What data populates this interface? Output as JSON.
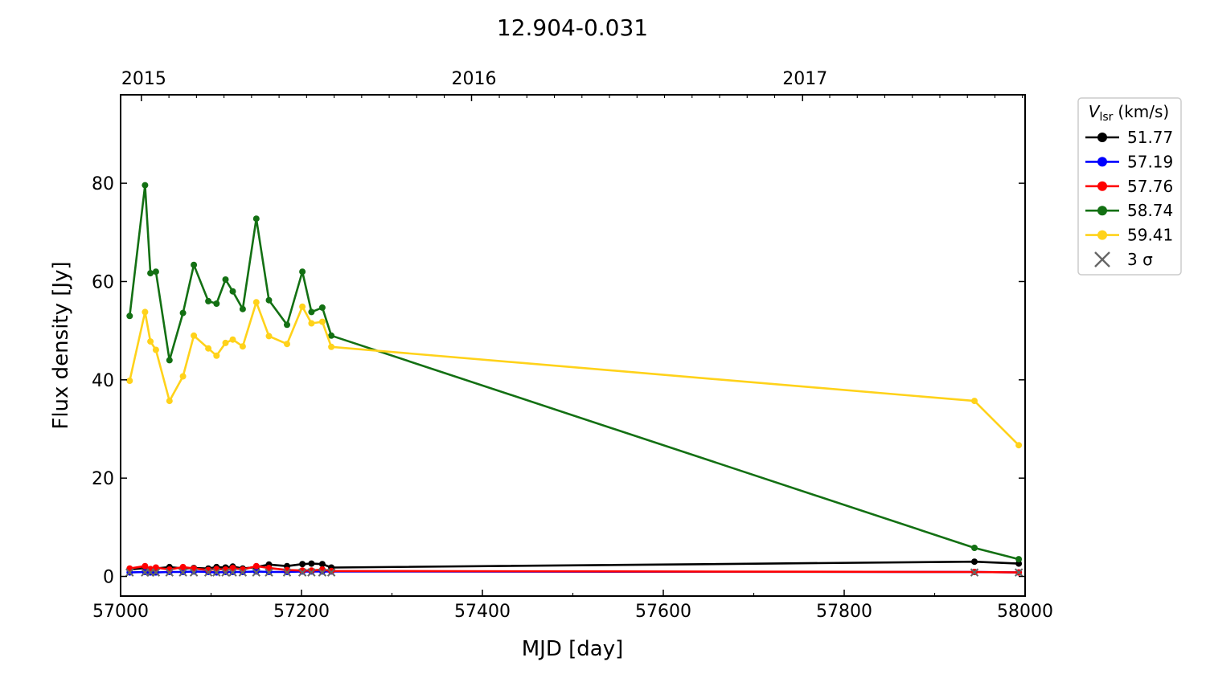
{
  "chart_data": {
    "type": "line",
    "title": "12.904-0.031",
    "xlabel": "MJD [day]",
    "ylabel": "Flux density [Jy]",
    "xlim": [
      57000,
      58000
    ],
    "ylim": [
      -4,
      98
    ],
    "xticks": [
      57000,
      57200,
      57400,
      57600,
      57800,
      58000
    ],
    "yticks": [
      0,
      20,
      40,
      60,
      80
    ],
    "top_axis": {
      "labels": [
        "2015",
        "2016",
        "2017"
      ],
      "mjd": [
        57023,
        57388,
        57754
      ]
    },
    "grid": false,
    "legend": {
      "placement": "outside-right-top",
      "title_main": "V",
      "title_sub": "lsr",
      "title_unit": "(km/s)",
      "threshold_label": "3 σ"
    },
    "series": [
      {
        "name": "51.77",
        "color": "#000000",
        "x": [
          57010,
          57027,
          57033,
          57039,
          57054,
          57069,
          57081,
          57097,
          57106,
          57116,
          57124,
          57135,
          57150,
          57164,
          57184,
          57201,
          57211,
          57223,
          57233,
          57944,
          57993
        ],
        "y": [
          1.4,
          1.7,
          1.4,
          1.6,
          1.9,
          1.6,
          1.7,
          1.6,
          1.9,
          1.8,
          2.0,
          1.6,
          1.9,
          2.4,
          2.1,
          2.5,
          2.6,
          2.5,
          1.8,
          3.0,
          2.6
        ]
      },
      {
        "name": "57.19",
        "color": "#0000ff",
        "x": [
          57010,
          57027,
          57033,
          57039,
          57054,
          57069,
          57081,
          57097,
          57106,
          57116,
          57124,
          57135,
          57150,
          57164,
          57184,
          57201,
          57211,
          57223,
          57233,
          57944,
          57993
        ],
        "y": [
          0.8,
          0.9,
          0.8,
          0.8,
          0.9,
          0.9,
          1.0,
          0.9,
          0.8,
          0.9,
          0.9,
          0.9,
          1.0,
          0.9,
          0.9,
          1.0,
          1.0,
          1.0,
          1.0,
          0.9,
          0.8
        ]
      },
      {
        "name": "57.76",
        "color": "#ff0000",
        "x": [
          57010,
          57027,
          57033,
          57039,
          57054,
          57069,
          57081,
          57097,
          57106,
          57116,
          57124,
          57135,
          57150,
          57164,
          57184,
          57201,
          57211,
          57223,
          57233,
          57944,
          57993
        ],
        "y": [
          1.6,
          2.1,
          1.5,
          1.8,
          1.4,
          1.9,
          1.6,
          1.3,
          1.5,
          1.4,
          1.7,
          1.4,
          2.1,
          1.7,
          1.3,
          1.2,
          1.2,
          1.4,
          1.1,
          0.9,
          0.8
        ]
      },
      {
        "name": "58.74",
        "color": "#137013",
        "x": [
          57010,
          57027,
          57033,
          57039,
          57054,
          57069,
          57081,
          57097,
          57106,
          57116,
          57124,
          57135,
          57150,
          57164,
          57184,
          57201,
          57211,
          57223,
          57233,
          57944,
          57993
        ],
        "y": [
          53.0,
          79.6,
          61.7,
          62.0,
          44.0,
          53.6,
          63.4,
          56.0,
          55.5,
          60.4,
          58.0,
          54.4,
          72.8,
          56.2,
          51.2,
          62.0,
          53.8,
          54.7,
          49.0,
          5.8,
          3.5
        ]
      },
      {
        "name": "59.41",
        "color": "#ffd21a",
        "x": [
          57010,
          57027,
          57033,
          57039,
          57054,
          57069,
          57081,
          57097,
          57106,
          57116,
          57124,
          57135,
          57150,
          57164,
          57184,
          57201,
          57211,
          57223,
          57233,
          57944,
          57993
        ],
        "y": [
          39.8,
          53.8,
          47.8,
          46.1,
          35.7,
          40.7,
          49.0,
          46.4,
          44.9,
          47.5,
          48.2,
          46.8,
          55.8,
          48.9,
          47.3,
          54.9,
          51.5,
          51.8,
          46.7,
          35.7,
          26.7
        ]
      }
    ],
    "three_sigma": {
      "name": "3 σ",
      "color": "#666666",
      "x": [
        57010,
        57027,
        57033,
        57039,
        57054,
        57069,
        57081,
        57097,
        57106,
        57116,
        57124,
        57135,
        57150,
        57164,
        57184,
        57201,
        57211,
        57223,
        57233,
        57944,
        57993
      ],
      "y": [
        0.8,
        0.8,
        0.8,
        0.8,
        0.8,
        0.8,
        0.8,
        0.8,
        0.8,
        0.8,
        0.8,
        0.8,
        0.8,
        0.8,
        0.8,
        0.8,
        0.8,
        0.8,
        0.8,
        0.8,
        0.8
      ]
    }
  }
}
